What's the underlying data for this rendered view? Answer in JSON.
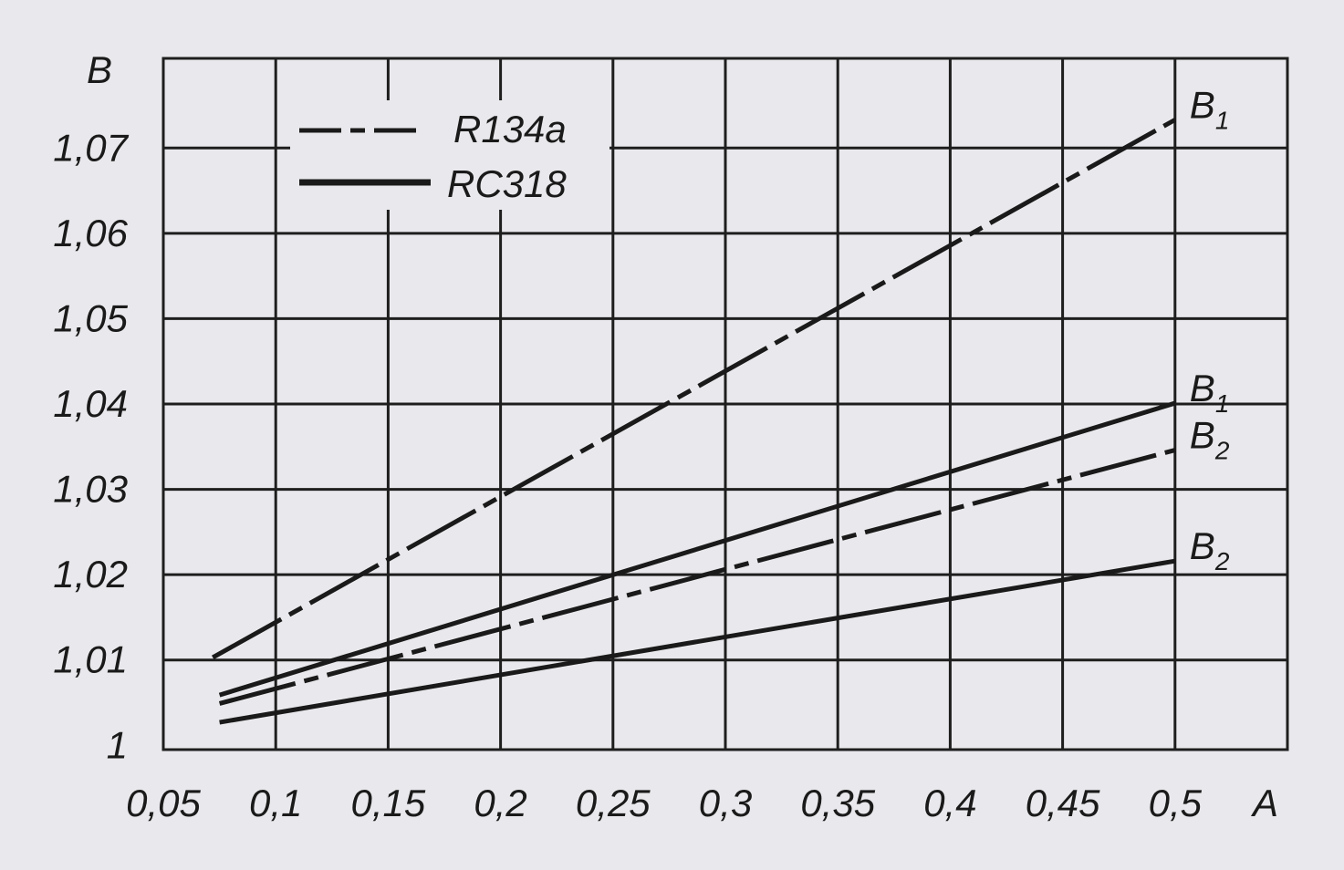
{
  "chart_data": {
    "type": "line",
    "xlabel": "A",
    "ylabel": "B",
    "xlim": [
      0.05,
      0.55
    ],
    "ylim": [
      0.9995,
      1.0805
    ],
    "x_ticks": [
      0.05,
      0.1,
      0.15,
      0.2,
      0.25,
      0.3,
      0.35,
      0.4,
      0.45,
      0.5
    ],
    "x_tick_labels": [
      "0,05",
      "0,1",
      "0,15",
      "0,2",
      "0,25",
      "0,3",
      "0,35",
      "0,4",
      "0,45",
      "0,5"
    ],
    "y_ticks": [
      1.0,
      1.01,
      1.02,
      1.03,
      1.04,
      1.05,
      1.06,
      1.07
    ],
    "y_tick_labels": [
      "1",
      "1,01",
      "1,02",
      "1,03",
      "1,04",
      "1,05",
      "1,06",
      "1,07"
    ],
    "grid": true,
    "legend": {
      "position": "top-left",
      "entries": [
        {
          "name": "R134a",
          "style": "dashdot"
        },
        {
          "name": "RC318",
          "style": "solid"
        }
      ]
    },
    "series": [
      {
        "name": "R134a",
        "label": "B",
        "label_sub": "1",
        "style": "dashdot",
        "x": [
          0.072,
          0.5
        ],
        "y": [
          1.0103,
          1.0733
        ]
      },
      {
        "name": "RC318",
        "label": "B",
        "label_sub": "1",
        "style": "solid",
        "x": [
          0.075,
          0.5
        ],
        "y": [
          1.0059,
          1.0401
        ]
      },
      {
        "name": "R134a",
        "label": "B",
        "label_sub": "2",
        "style": "dashdot",
        "x": [
          0.075,
          0.5
        ],
        "y": [
          1.0049,
          1.0346
        ]
      },
      {
        "name": "RC318",
        "label": "B",
        "label_sub": "2",
        "style": "solid",
        "x": [
          0.075,
          0.5
        ],
        "y": [
          1.0027,
          1.0216
        ]
      }
    ]
  }
}
